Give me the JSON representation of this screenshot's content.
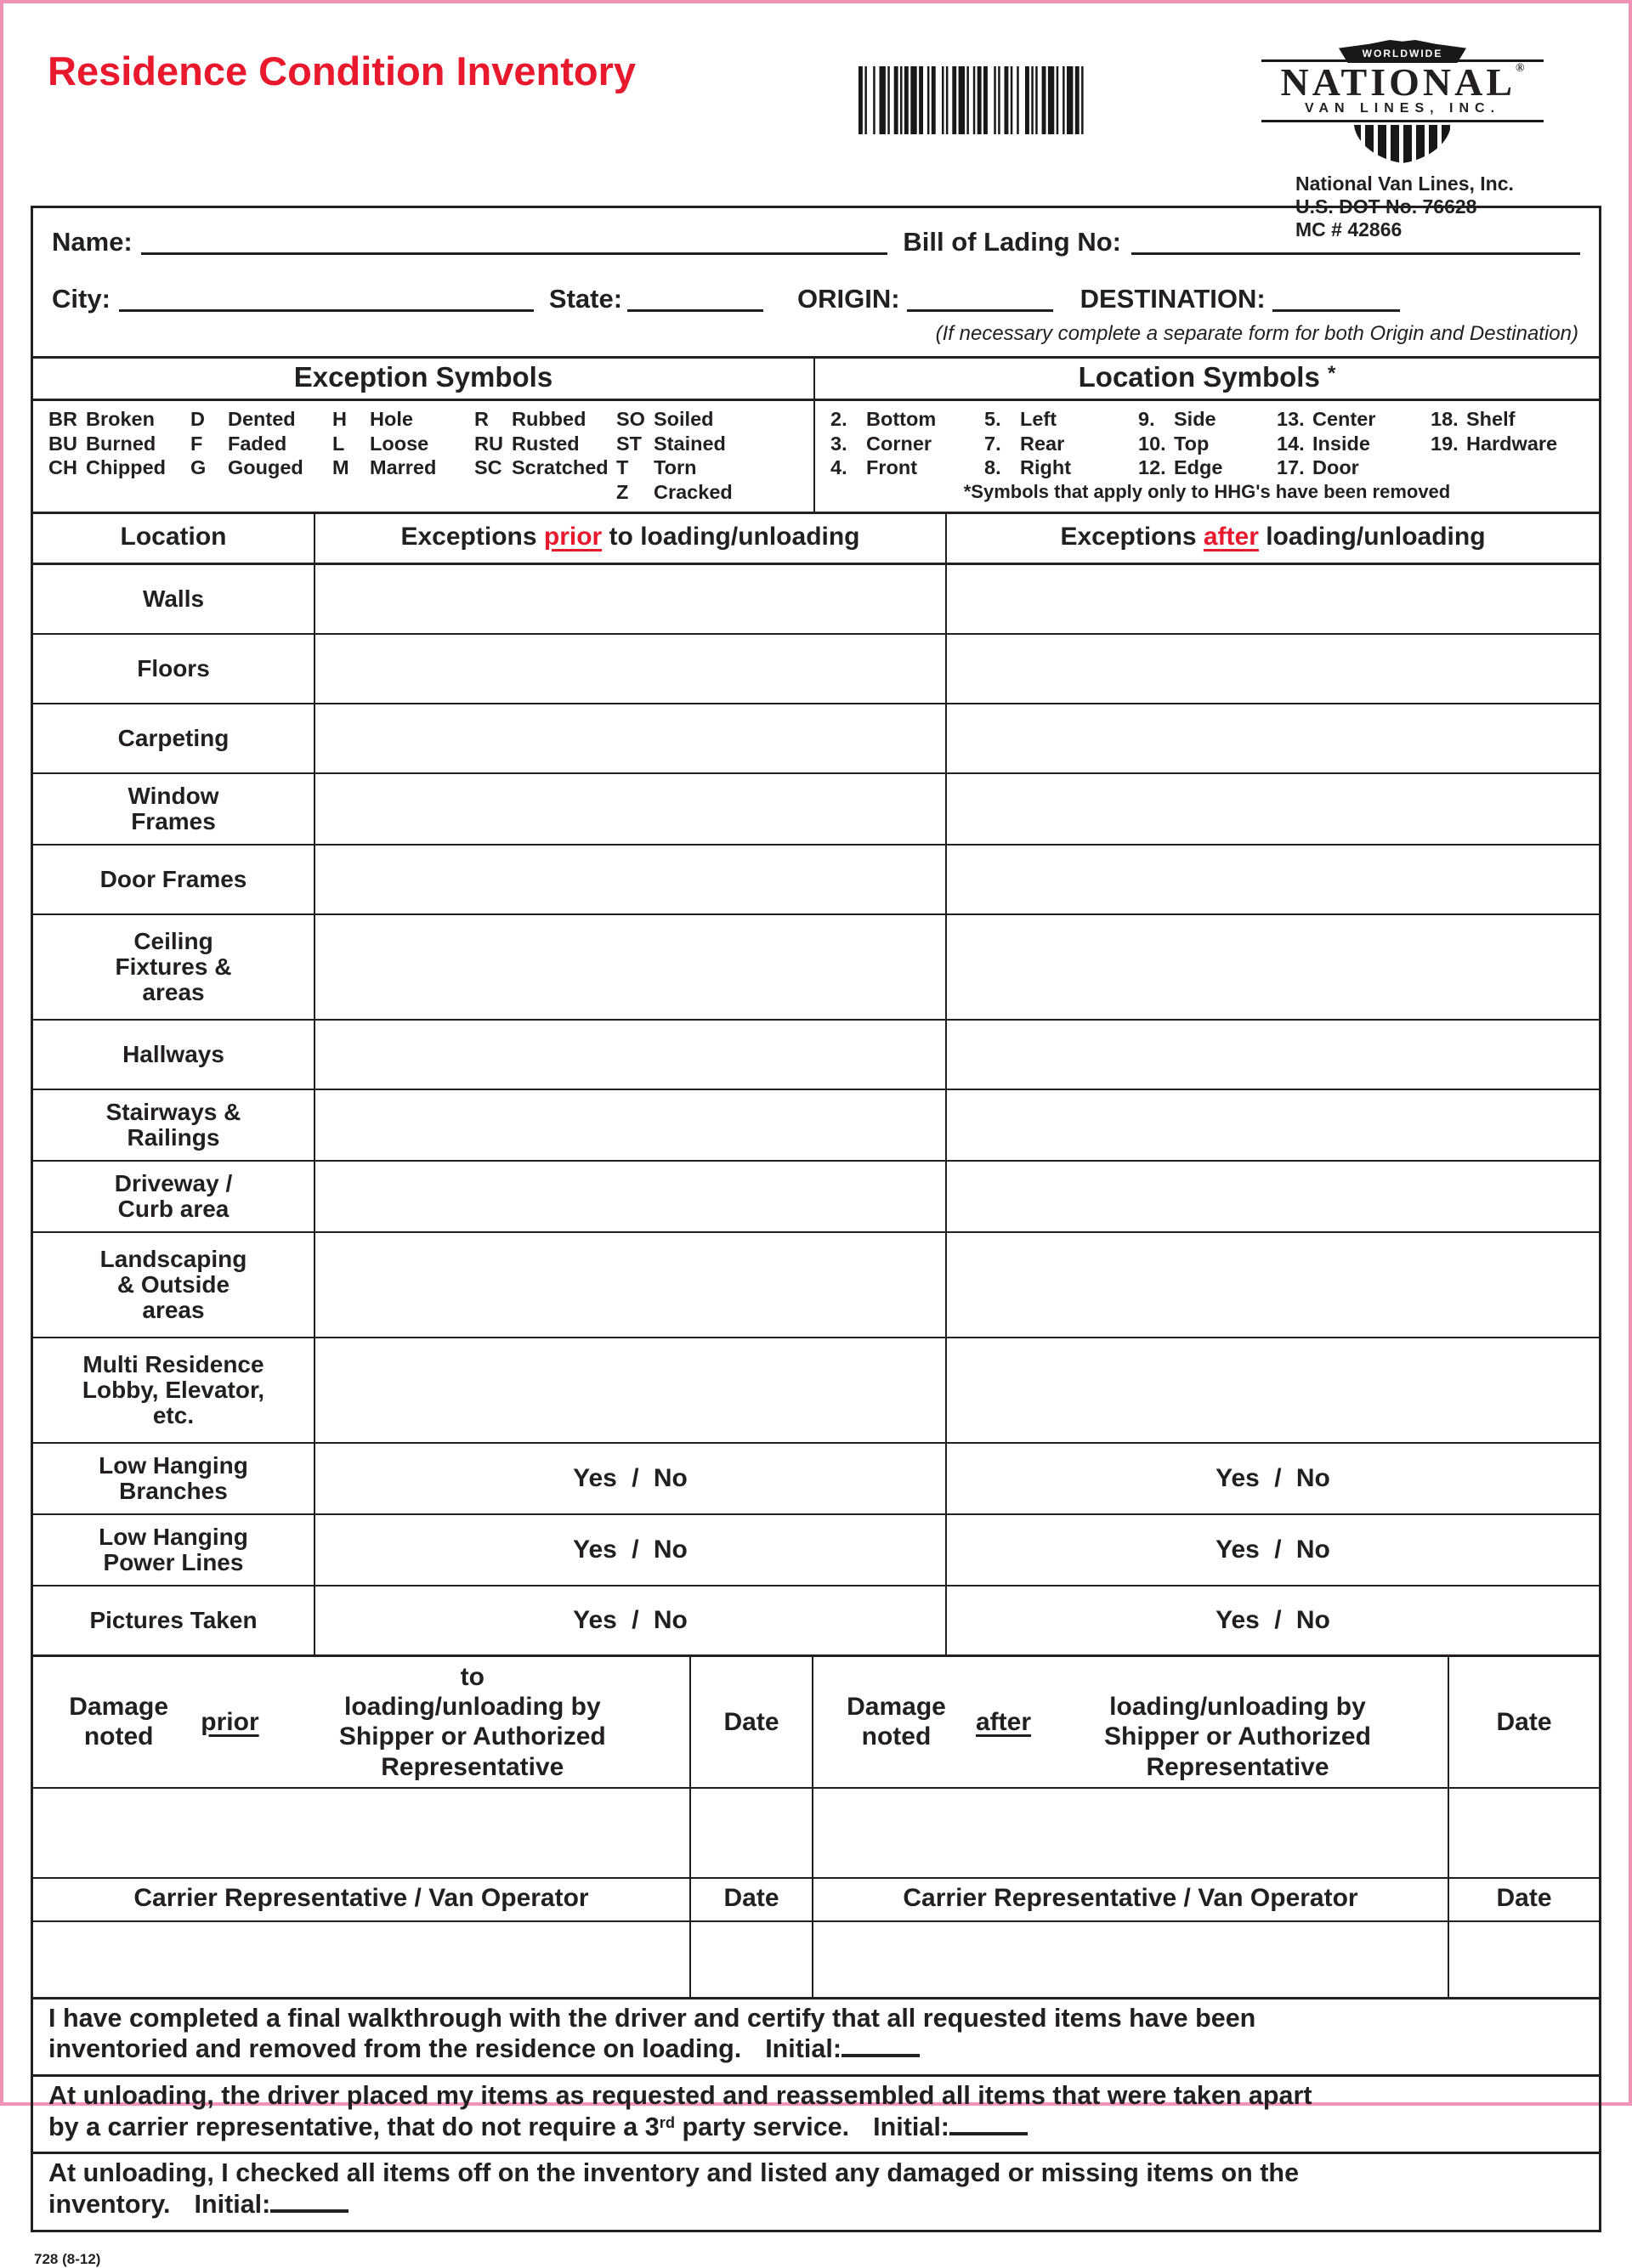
{
  "colors": {
    "title_red": "#e8192d",
    "page_border_pink": "#f193b7",
    "ink": "#231f20"
  },
  "header": {
    "title": "Residence Condition Inventory",
    "logo": {
      "banner": "WORLDWIDE",
      "brand": "NATIONAL",
      "brand_reg": "®",
      "brand_sub": "VAN LINES, INC.",
      "company_line": "National Van Lines, Inc.",
      "dot_line": "U.S. DOT No. 76628",
      "mc_line": "MC # 42866"
    }
  },
  "info": {
    "name_label": "Name:",
    "bol_label": "Bill of Lading No:",
    "city_label": "City:",
    "state_label": "State:",
    "origin_label": "ORIGIN:",
    "destination_label": "DESTINATION:",
    "note": "(If necessary complete a separate form for both Origin and Destination)"
  },
  "exception_symbols": {
    "title": "Exception Symbols",
    "columns": [
      [
        {
          "code": "BR",
          "name": "Broken"
        },
        {
          "code": "BU",
          "name": "Burned"
        },
        {
          "code": "CH",
          "name": "Chipped"
        }
      ],
      [
        {
          "code": "D",
          "name": "Dented"
        },
        {
          "code": "F",
          "name": "Faded"
        },
        {
          "code": "G",
          "name": "Gouged"
        }
      ],
      [
        {
          "code": "H",
          "name": "Hole"
        },
        {
          "code": "L",
          "name": "Loose"
        },
        {
          "code": "M",
          "name": "Marred"
        }
      ],
      [
        {
          "code": "R",
          "name": "Rubbed"
        },
        {
          "code": "RU",
          "name": "Rusted"
        },
        {
          "code": "SC",
          "name": "Scratched"
        }
      ],
      [
        {
          "code": "SO",
          "name": "Soiled"
        },
        {
          "code": "ST",
          "name": "Stained"
        },
        {
          "code": "T",
          "name": "Torn"
        },
        {
          "code": "Z",
          "name": "Cracked"
        }
      ]
    ]
  },
  "location_symbols": {
    "title": "Location Symbols",
    "asterisk": "*",
    "columns": [
      [
        {
          "code": "2.",
          "name": "Bottom"
        },
        {
          "code": "3.",
          "name": "Corner"
        },
        {
          "code": "4.",
          "name": "Front"
        }
      ],
      [
        {
          "code": "5.",
          "name": "Left"
        },
        {
          "code": "7.",
          "name": "Rear"
        },
        {
          "code": "8.",
          "name": "Right"
        }
      ],
      [
        {
          "code": "9.",
          "name": "Side"
        },
        {
          "code": "10.",
          "name": "Top"
        },
        {
          "code": "12.",
          "name": "Edge"
        }
      ],
      [
        {
          "code": "13.",
          "name": "Center"
        },
        {
          "code": "14.",
          "name": "Inside"
        },
        {
          "code": "17.",
          "name": "Door"
        }
      ],
      [
        {
          "code": "18.",
          "name": "Shelf"
        },
        {
          "code": "19.",
          "name": "Hardware"
        }
      ]
    ],
    "footnote": "*Symbols that apply only to HHG's have been removed"
  },
  "table": {
    "header": {
      "location": "Location",
      "prior_pre": "Exceptions ",
      "prior_word": "prior",
      "prior_post": " to loading/unloading",
      "after_pre": "Exceptions ",
      "after_word": "after",
      "after_post": " loading/unloading"
    },
    "rows": [
      {
        "label": "Walls",
        "value": ""
      },
      {
        "label": "Floors",
        "value": ""
      },
      {
        "label": "Carpeting",
        "value": ""
      },
      {
        "label": "Window\nFrames",
        "value": ""
      },
      {
        "label": "Door Frames",
        "value": ""
      },
      {
        "label": "Ceiling\nFixtures &\nareas",
        "value": ""
      },
      {
        "label": "Hallways",
        "value": ""
      },
      {
        "label": "Stairways &\nRailings",
        "value": ""
      },
      {
        "label": "Driveway /\nCurb area",
        "value": ""
      },
      {
        "label": "Landscaping\n& Outside\nareas",
        "value": ""
      },
      {
        "label": "Multi Residence\nLobby, Elevator,\netc.",
        "value": ""
      },
      {
        "label": "Low Hanging\nBranches",
        "value": "Yes / No"
      },
      {
        "label": "Low Hanging\nPower Lines",
        "value": "Yes / No"
      },
      {
        "label": "Pictures Taken",
        "value": "Yes / No"
      }
    ]
  },
  "damage": {
    "prior": {
      "pre": "Damage noted ",
      "word": "prior",
      "post": " to\nloading/unloading by\nShipper or Authorized Representative"
    },
    "after": {
      "pre": "Damage noted ",
      "word": "after",
      "post": "\nloading/unloading by\nShipper or Authorized Representative"
    },
    "date_label": "Date",
    "carrier_label": "Carrier Representative / Van Operator"
  },
  "certifications": [
    {
      "pre": "I have completed a final walkthrough with the driver and certify that all requested items have been\ninventoried and removed from the residence on loading.",
      "sup": "",
      "post": "",
      "initial_label": "Initial:"
    },
    {
      "pre": "At unloading, the driver placed my items as requested and reassembled all items that were taken apart\nby a carrier representative, that do not require a 3",
      "sup": "rd",
      "post": " party service.",
      "initial_label": "Initial:"
    },
    {
      "pre": "At unloading, I checked all items off on the inventory and listed any damaged or missing items on the\ninventory.",
      "sup": "",
      "post": "",
      "initial_label": "Initial:"
    }
  ],
  "footer": {
    "form_number": "728 (8-12)"
  }
}
